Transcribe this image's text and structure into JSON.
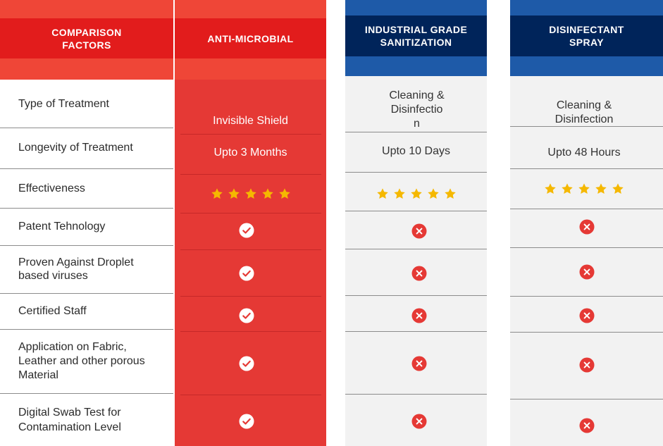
{
  "header": {
    "factors": "COMPARISON\nFACTORS",
    "anti_microbial": "ANTI-MICROBIAL",
    "industrial": "INDUSTRIAL GRADE\nSANITIZATION",
    "disinfectant": "DISINFECTANT\nSPRAY"
  },
  "factors": [
    "Type of Treatment",
    "Longevity of Treatment",
    "Effectiveness",
    "Patent Tehnology",
    "Proven Against Droplet\nbased viruses",
    "Certified Staff",
    "Application on Fabric,\nLeather and other porous\nMaterial",
    "Digital Swab Test for\nContamination Level"
  ],
  "anti_microbial": {
    "type": "Invisible Shield",
    "longevity": "Upto 3 Months",
    "effectiveness_stars": 5,
    "results": [
      "check",
      "check",
      "check",
      "check",
      "check"
    ]
  },
  "industrial": {
    "type": "Cleaning &\nDisinfectio\nn",
    "longevity": "Upto 10 Days",
    "effectiveness_stars": 5,
    "results": [
      "cross",
      "cross",
      "cross",
      "cross",
      "cross"
    ]
  },
  "disinfectant": {
    "type": "Cleaning &\nDisinfection",
    "longevity": "Upto 48 Hours",
    "effectiveness_stars": 5,
    "results": [
      "cross",
      "cross",
      "cross",
      "cross",
      "cross"
    ]
  },
  "colors": {
    "red": "#e53935",
    "red_dark": "#e21c1c",
    "red_light": "#ef4637",
    "blue": "#1e5aa8",
    "navy": "#00245a",
    "grey_bg": "#f2f2f2",
    "star": "#f5b800",
    "cross": "#e53935"
  },
  "icons": {
    "rating": "star-icon",
    "yes": "check-circle-icon",
    "no": "cross-circle-icon"
  }
}
